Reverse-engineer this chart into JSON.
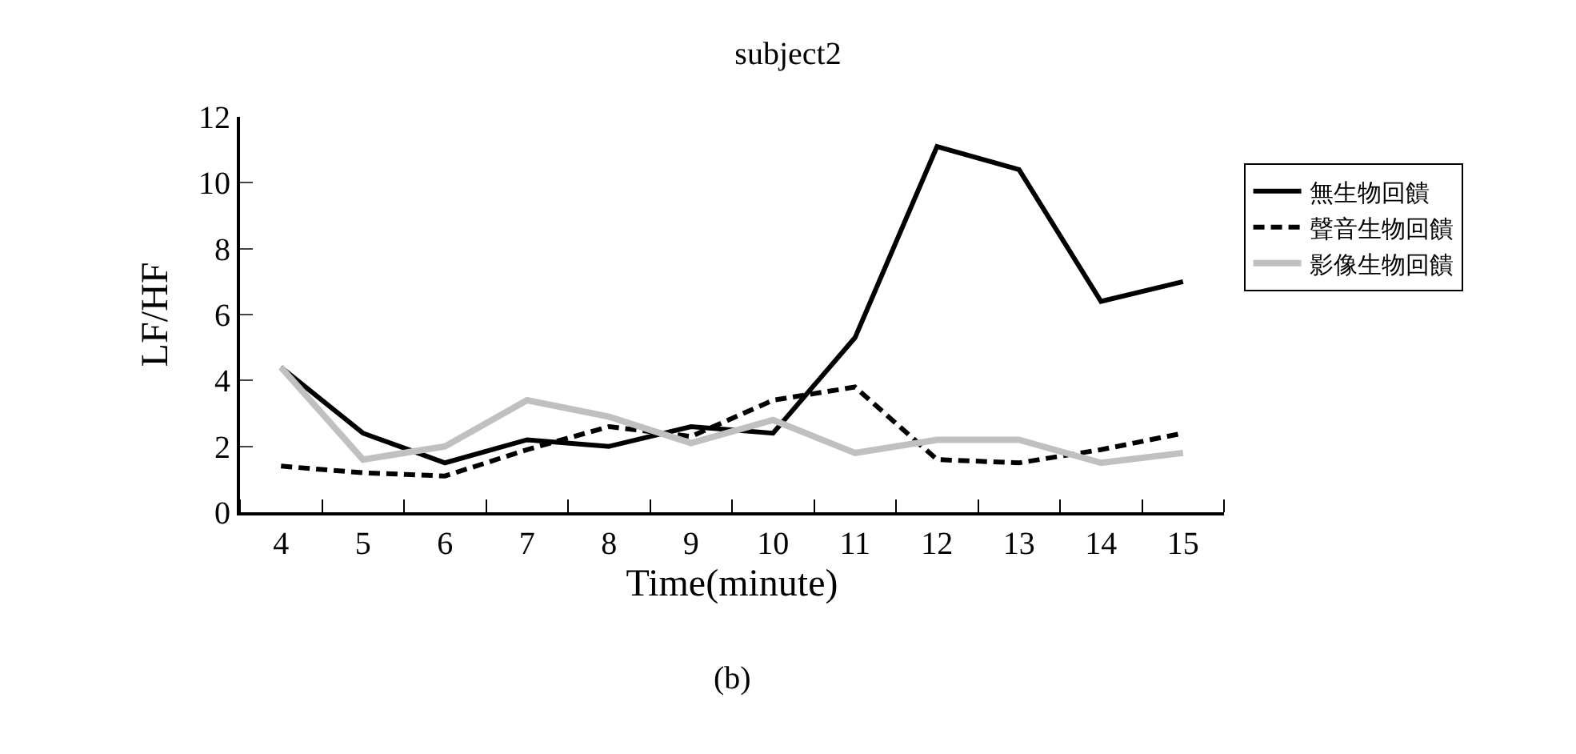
{
  "chart_data": {
    "type": "line",
    "title": "subject2",
    "xlabel": "Time(minute)",
    "ylabel": "LF/HF",
    "annotations": [
      "(b)"
    ],
    "categories": [
      "4",
      "5",
      "6",
      "7",
      "8",
      "9",
      "10",
      "11",
      "12",
      "13",
      "14",
      "15"
    ],
    "ylim": [
      0,
      12
    ],
    "yticks": [
      0,
      2,
      4,
      6,
      8,
      10,
      12
    ],
    "grid": false,
    "legend": "right",
    "marker": "none",
    "series": [
      {
        "name": "無生物回饋",
        "color": "#000000",
        "line_style": "solid",
        "values": [
          4.4,
          2.4,
          1.5,
          2.2,
          2.0,
          2.6,
          2.4,
          5.3,
          11.1,
          10.4,
          6.4,
          7.0
        ]
      },
      {
        "name": "聲音生物回饋",
        "color": "#000000",
        "line_style": "dashed",
        "values": [
          1.4,
          1.2,
          1.1,
          1.9,
          2.6,
          2.3,
          3.4,
          3.8,
          1.6,
          1.5,
          1.9,
          2.4
        ]
      },
      {
        "name": "影像生物回饋",
        "color": "#c0c0c0",
        "line_style": "solid",
        "values": [
          4.4,
          1.6,
          2.0,
          3.4,
          2.9,
          2.1,
          2.8,
          1.8,
          2.2,
          2.2,
          1.5,
          1.8
        ]
      }
    ]
  }
}
